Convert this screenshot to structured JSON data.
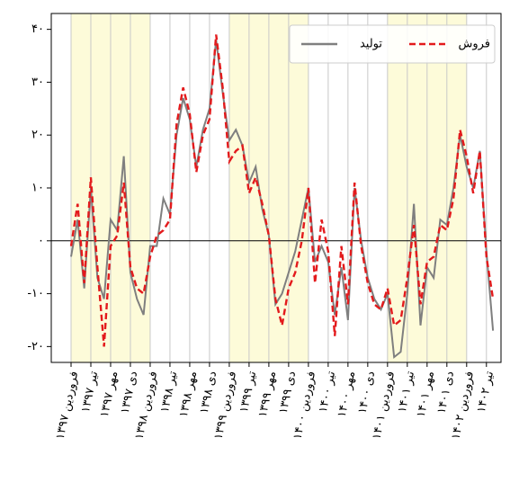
{
  "chart_data": {
    "type": "line",
    "categories": [
      "فروردین ۱۳۹۷",
      null,
      null,
      "تیر ۱۳۹۷",
      null,
      null,
      "مهر ۱۳۹۷",
      null,
      null,
      "دی ۱۳۹۷",
      null,
      null,
      "فروردین ۱۳۹۸",
      null,
      null,
      "تیر ۱۳۹۸",
      null,
      null,
      "مهر ۱۳۹۸",
      null,
      null,
      "دی ۱۳۹۸",
      null,
      null,
      "فروردین ۱۳۹۹",
      null,
      null,
      "تیر ۱۳۹۹",
      null,
      null,
      "مهر ۱۳۹۹",
      null,
      null,
      "دی ۱۳۹۹",
      null,
      null,
      "فروردین ۱۴۰۰",
      null,
      null,
      "تیر ۱۴۰۰",
      null,
      null,
      "مهر ۱۴۰۰",
      null,
      null,
      "دی ۱۴۰۰",
      null,
      null,
      "فروردین ۱۴۰۱",
      null,
      null,
      "تیر ۱۴۰۱",
      null,
      null,
      "مهر ۱۴۰۱",
      null,
      null,
      "دی ۱۴۰۱",
      null,
      null,
      "فروردین ۱۴۰۲",
      null,
      null,
      "تیر ۱۴۰۲",
      null
    ],
    "series": [
      {
        "name": "فروش",
        "color": "#e31a1c",
        "dash": true,
        "values": [
          -1,
          7,
          -8,
          12,
          -5,
          -20,
          -1,
          1,
          11,
          -5,
          -9,
          -10,
          -3,
          1,
          2,
          4,
          22,
          29,
          24,
          13,
          20,
          23,
          39,
          29,
          15,
          17,
          18,
          9,
          12,
          7,
          1,
          -11,
          -16,
          -9,
          -6,
          0,
          10,
          -8,
          4,
          -2,
          -18,
          -1,
          -12,
          11,
          -1,
          -8,
          -12,
          -13,
          -9,
          -16,
          -15,
          -7,
          3,
          -12,
          -4,
          -3,
          3,
          2,
          8,
          21,
          16,
          9,
          17,
          -3,
          -11
        ]
      },
      {
        "name": "تولید",
        "color": "#7f7f7f",
        "dash": false,
        "values": [
          -3,
          4,
          -9,
          10,
          -7,
          -11,
          4,
          2,
          16,
          -6,
          -11,
          -14,
          -1,
          -1,
          8,
          5,
          20,
          27,
          23,
          14,
          21,
          25,
          38,
          28,
          19,
          21,
          18,
          11,
          14,
          6,
          1,
          -12,
          -10,
          -6,
          -2,
          4,
          10,
          -4,
          -1,
          -4,
          -14,
          -5,
          -15,
          10,
          0,
          -7,
          -11,
          -13,
          -10,
          -22,
          -21,
          -10,
          7,
          -16,
          -5,
          -7,
          4,
          3,
          10,
          20,
          14,
          10,
          17,
          -2,
          -17
        ]
      }
    ],
    "ylim": [
      -23,
      43
    ],
    "yticks": [
      {
        "value": -20,
        "label": "-۲۰"
      },
      {
        "value": -10,
        "label": "-۱۰"
      },
      {
        "value": 0,
        "label": "۰"
      },
      {
        "value": 10,
        "label": "۱۰"
      },
      {
        "value": 20,
        "label": "۲۰"
      },
      {
        "value": 30,
        "label": "۳۰"
      },
      {
        "value": 40,
        "label": "۴۰"
      }
    ],
    "grid": true,
    "legend": "upper right"
  }
}
